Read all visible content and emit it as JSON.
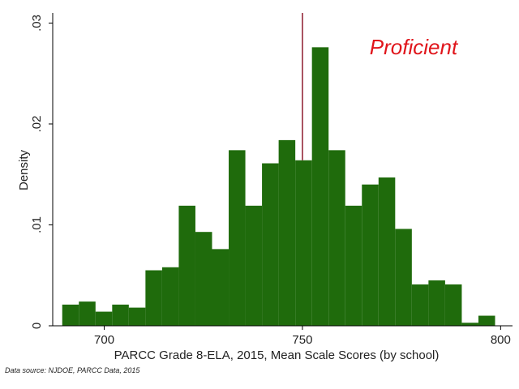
{
  "chart_data": {
    "type": "bar",
    "subtype": "histogram",
    "xlabel": "PARCC Grade 8-ELA, 2015, Mean Scale Scores (by school)",
    "ylabel": "Density",
    "xlim": [
      687,
      803
    ],
    "ylim": [
      0,
      0.031
    ],
    "x_ticks": [
      700,
      750,
      800
    ],
    "x_tick_labels": [
      "700",
      "750",
      "800"
    ],
    "y_ticks": [
      0,
      0.01,
      0.02,
      0.03
    ],
    "y_tick_labels": [
      "0",
      ".01",
      ".02",
      ".03"
    ],
    "grid": false,
    "bin_width": 4.2,
    "bin_start": 689.4,
    "values": [
      0.0021,
      0.0024,
      0.0014,
      0.0021,
      0.0018,
      0.0055,
      0.0058,
      0.0119,
      0.0093,
      0.0076,
      0.0174,
      0.0119,
      0.0161,
      0.0184,
      0.0164,
      0.0276,
      0.0174,
      0.0119,
      0.014,
      0.0147,
      0.0096,
      0.0041,
      0.0045,
      0.0041,
      0.0003,
      0.001
    ],
    "bar_color": "#1f6b0c",
    "reference_line": {
      "x": 750,
      "color": "#8c1a2c"
    },
    "annotation": {
      "text": "Proficient",
      "color": "#e0151b"
    }
  },
  "source_note": "Data source: NJDOE, PARCC Data, 2015"
}
